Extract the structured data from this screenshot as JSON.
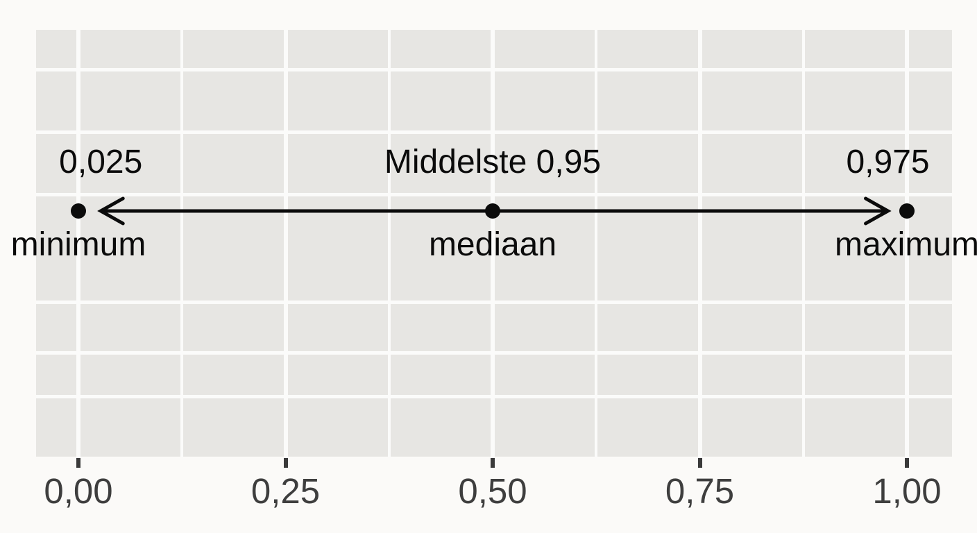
{
  "colors": {
    "page_bg": "#fbfaf8",
    "panel_bg": "#e7e6e3",
    "grid": "#fbfbfa",
    "ink": "#0b0b0b",
    "axis_text": "#3e3e3e",
    "tick": "#3a3a3a"
  },
  "chart_data": {
    "type": "scatter",
    "title": "",
    "description": "Number line showing the middle 95% interval between the 0.025 and 0.975 quantiles, with minimum, median and maximum points",
    "x_axis": {
      "tick_labels": [
        "0,00",
        "0,25",
        "0,50",
        "0,75",
        "1,00"
      ],
      "tick_values": [
        0,
        0.25,
        0.5,
        0.75,
        1
      ],
      "minor_grid_values": [
        0.125,
        0.375,
        0.625,
        0.875
      ],
      "range": [
        -0.05,
        1.05
      ],
      "decimal_style": "comma"
    },
    "grid": true,
    "legend": false,
    "points": [
      {
        "x": 0,
        "value_label": "0,025",
        "value_label_x": 0.027,
        "name_label": "minimum"
      },
      {
        "x": 0.5,
        "value_label": "Middelste 0,95",
        "value_label_x": 0.5,
        "name_label": "mediaan"
      },
      {
        "x": 1,
        "value_label": "0,975",
        "value_label_x": 0.977,
        "name_label": "maximum"
      }
    ],
    "interval_arrow": {
      "x_start": 0.027,
      "x_end": 0.977,
      "double_headed": true
    }
  }
}
